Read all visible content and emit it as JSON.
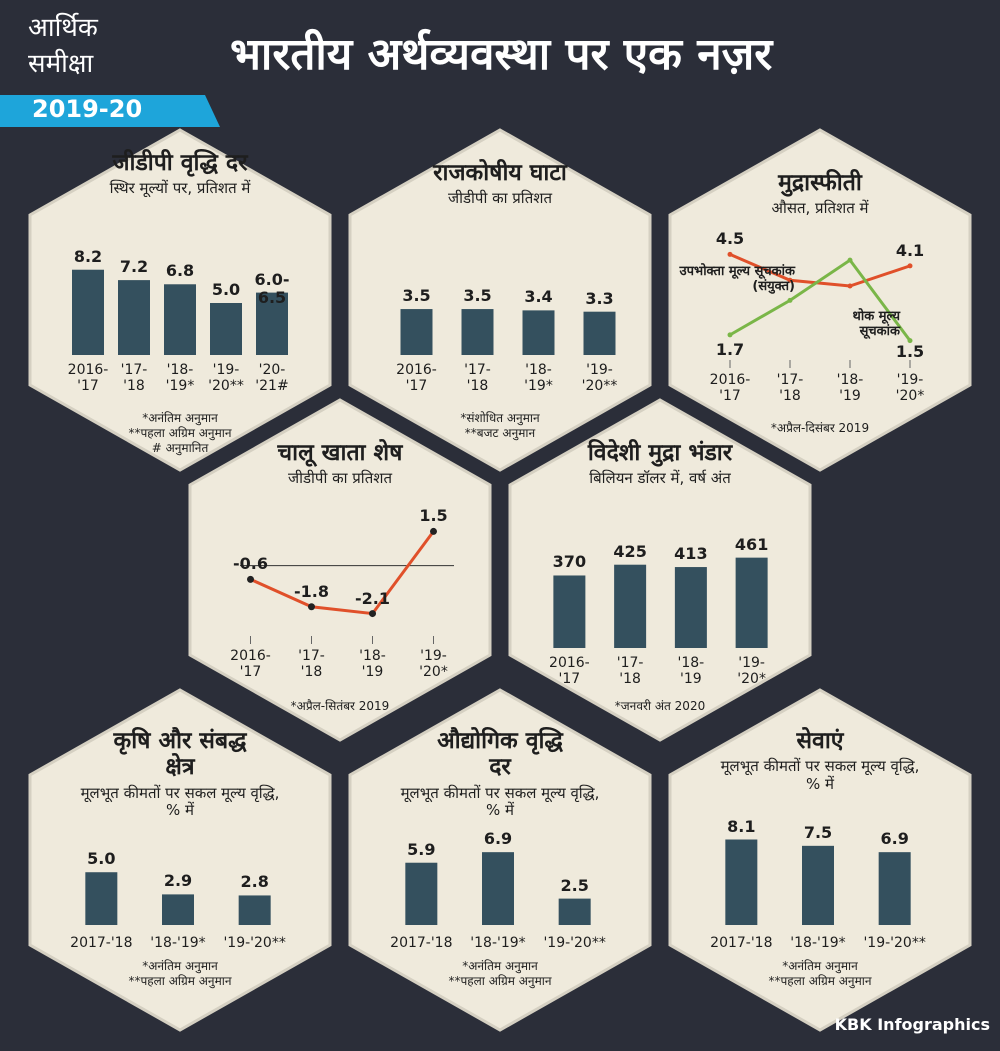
{
  "header": {
    "badge_line1": "आर्थिक",
    "badge_line2": "समीक्षा",
    "year": "2019-20",
    "title": "भारतीय अर्थव्यवस्था पर एक नज़र"
  },
  "chart_data": [
    {
      "type": "bar",
      "title": "जीडीपी वृद्धि दर",
      "subtitle": "स्थिर मूल्यों पर, प्रतिशत में",
      "categories": [
        "2016-'17",
        "'17-'18",
        "'18-'19*",
        "'19-'20**",
        "'20-'21#"
      ],
      "values": [
        8.2,
        7.2,
        6.8,
        5.0,
        6.0
      ],
      "value_labels": [
        "8.2",
        "7.2",
        "6.8",
        "5.0",
        "6.0-6.5"
      ],
      "color": "#34505e",
      "ylim": [
        0,
        10
      ],
      "notes": [
        "*अनंतिम अनुमान",
        "**पहला अग्रिम अनुमान",
        "# अनुमानित"
      ]
    },
    {
      "type": "bar",
      "title": "राजकोषीय घाटा",
      "subtitle": "जीडीपी का प्रतिशत",
      "categories": [
        "2016-'17",
        "'17-'18",
        "'18-'19*",
        "'19-'20**"
      ],
      "values": [
        3.5,
        3.5,
        3.4,
        3.3
      ],
      "color": "#34505e",
      "ylim": [
        0,
        8
      ],
      "notes": [
        "*संशोधित अनुमान",
        "**बजट अनुमान"
      ]
    },
    {
      "type": "line",
      "title": "मुद्रास्फीती",
      "subtitle": "औसत, प्रतिशत में",
      "categories": [
        "2016-'17",
        "'17-'18",
        "'18-'19",
        "'19-'20*"
      ],
      "series": [
        {
          "name": "उपभोक्ता मूल्य सूचकांक (संयुक्त)",
          "color": "#e0502a",
          "values": [
            4.5,
            3.6,
            3.4,
            4.1
          ]
        },
        {
          "name": "थोक मूल्य सूचकांक",
          "color": "#7ab648",
          "values": [
            1.7,
            2.9,
            4.3,
            1.5
          ]
        }
      ],
      "ylim": [
        1,
        5
      ],
      "notes": [
        "*अप्रैल-दिसंबर 2019"
      ]
    },
    {
      "type": "line",
      "title": "चालू खाता शेष",
      "subtitle": "जीडीपी का प्रतिशत",
      "categories": [
        "2016-'17",
        "'17-'18",
        "'18-'19",
        "'19-'20*"
      ],
      "values": [
        -0.6,
        -1.8,
        -2.1,
        1.5
      ],
      "color": "#e0502a",
      "ylim": [
        -2.6,
        2
      ],
      "zero_line": true,
      "notes": [
        "*अप्रैल-सितंबर 2019"
      ]
    },
    {
      "type": "bar",
      "title": "विदेशी मुद्रा भंडार",
      "subtitle": "बिलियन डॉलर में, वर्ष अंत",
      "categories": [
        "2016-'17",
        "'17-'18",
        "'18-'19",
        "'19-'20*"
      ],
      "values": [
        370,
        425,
        413,
        461
      ],
      "color": "#34505e",
      "ylim": [
        0,
        500
      ],
      "notes": [
        "*जनवरी अंत 2020"
      ]
    },
    {
      "type": "bar",
      "title": "कृषि और संबद्ध क्षेत्र",
      "subtitle": "मूलभूत कीमतों पर सकल मूल्य वृद्धि, % में",
      "categories": [
        "2017-'18",
        "'18-'19*",
        "'19-'20**"
      ],
      "values": [
        5.0,
        2.9,
        2.8
      ],
      "value_labels": [
        "5.0",
        "2.9",
        "2.8"
      ],
      "color": "#34505e",
      "ylim": [
        0,
        9
      ],
      "notes": [
        "*अनंतिम अनुमान",
        "**पहला अग्रिम अनुमान"
      ]
    },
    {
      "type": "bar",
      "title": "औद्योगिक वृद्धि दर",
      "subtitle": "मूलभूत कीमतों पर सकल मूल्य वृद्धि, % में",
      "categories": [
        "2017-'18",
        "'18-'19*",
        "'19-'20**"
      ],
      "values": [
        5.9,
        6.9,
        2.5
      ],
      "color": "#34505e",
      "ylim": [
        0,
        9
      ],
      "notes": [
        "*अनंतिम अनुमान",
        "**पहला अग्रिम अनुमान"
      ]
    },
    {
      "type": "bar",
      "title": "सेवाएं",
      "subtitle": "मूलभूत कीमतों पर सकल मूल्य वृद्धि, % में",
      "categories": [
        "2017-'18",
        "'18-'19*",
        "'19-'20**"
      ],
      "values": [
        8.1,
        7.5,
        6.9
      ],
      "color": "#34505e",
      "ylim": [
        0,
        9
      ],
      "notes": [
        "*अनंतिम अनुमान",
        "**पहला अग्रिम अनुमान"
      ]
    }
  ],
  "footer": {
    "credit": "KBK Infographics"
  }
}
